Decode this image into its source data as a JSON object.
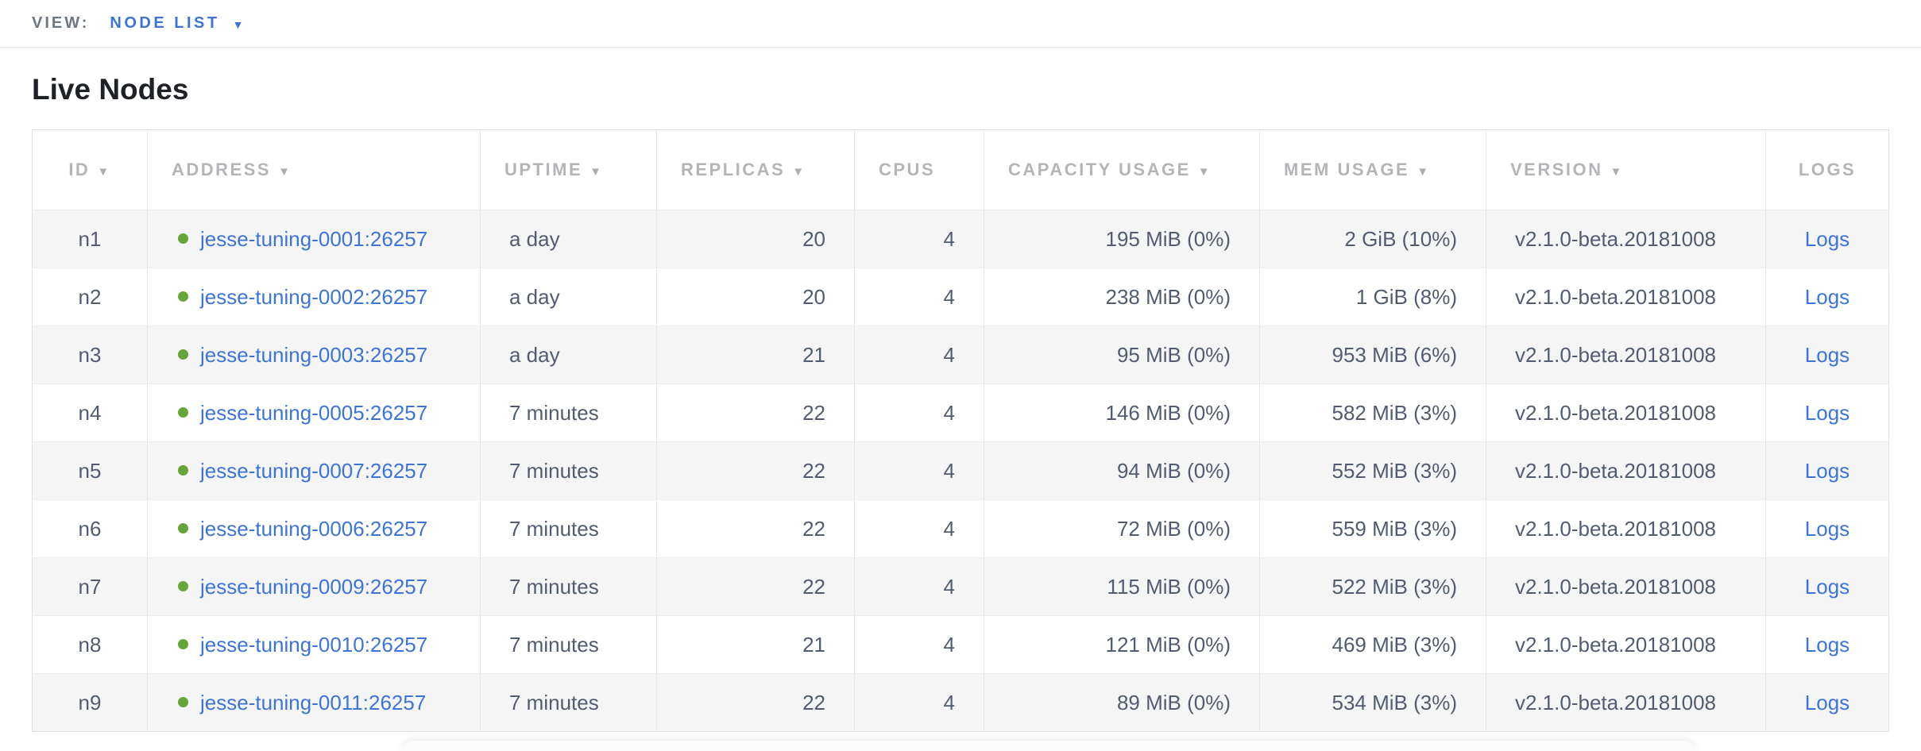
{
  "view_bar": {
    "label": "VIEW:",
    "selected_view": "NODE LIST"
  },
  "icons": {
    "dropdown_caret": "▼",
    "sort_caret": "▼"
  },
  "page": {
    "title": "Live Nodes"
  },
  "table": {
    "columns": [
      {
        "key": "id",
        "label": "ID",
        "sortable": true
      },
      {
        "key": "address",
        "label": "ADDRESS",
        "sortable": true
      },
      {
        "key": "uptime",
        "label": "UPTIME",
        "sortable": true
      },
      {
        "key": "replicas",
        "label": "REPLICAS",
        "sortable": true
      },
      {
        "key": "cpus",
        "label": "CPUS",
        "sortable": false
      },
      {
        "key": "capacity",
        "label": "CAPACITY USAGE",
        "sortable": true
      },
      {
        "key": "mem",
        "label": "MEM USAGE",
        "sortable": true
      },
      {
        "key": "version",
        "label": "VERSION",
        "sortable": true
      },
      {
        "key": "logs",
        "label": "LOGS",
        "sortable": false
      }
    ],
    "rows": [
      {
        "id": "n1",
        "status": "live",
        "address": "jesse-tuning-0001:26257",
        "uptime": "a day",
        "replicas": "20",
        "cpus": "4",
        "capacity": "195 MiB (0%)",
        "mem": "2 GiB (10%)",
        "version": "v2.1.0-beta.20181008",
        "logs": "Logs"
      },
      {
        "id": "n2",
        "status": "live",
        "address": "jesse-tuning-0002:26257",
        "uptime": "a day",
        "replicas": "20",
        "cpus": "4",
        "capacity": "238 MiB (0%)",
        "mem": "1 GiB (8%)",
        "version": "v2.1.0-beta.20181008",
        "logs": "Logs"
      },
      {
        "id": "n3",
        "status": "live",
        "address": "jesse-tuning-0003:26257",
        "uptime": "a day",
        "replicas": "21",
        "cpus": "4",
        "capacity": "95 MiB (0%)",
        "mem": "953 MiB (6%)",
        "version": "v2.1.0-beta.20181008",
        "logs": "Logs"
      },
      {
        "id": "n4",
        "status": "live",
        "address": "jesse-tuning-0005:26257",
        "uptime": "7 minutes",
        "replicas": "22",
        "cpus": "4",
        "capacity": "146 MiB (0%)",
        "mem": "582 MiB (3%)",
        "version": "v2.1.0-beta.20181008",
        "logs": "Logs"
      },
      {
        "id": "n5",
        "status": "live",
        "address": "jesse-tuning-0007:26257",
        "uptime": "7 minutes",
        "replicas": "22",
        "cpus": "4",
        "capacity": "94 MiB (0%)",
        "mem": "552 MiB (3%)",
        "version": "v2.1.0-beta.20181008",
        "logs": "Logs"
      },
      {
        "id": "n6",
        "status": "live",
        "address": "jesse-tuning-0006:26257",
        "uptime": "7 minutes",
        "replicas": "22",
        "cpus": "4",
        "capacity": "72 MiB (0%)",
        "mem": "559 MiB (3%)",
        "version": "v2.1.0-beta.20181008",
        "logs": "Logs"
      },
      {
        "id": "n7",
        "status": "live",
        "address": "jesse-tuning-0009:26257",
        "uptime": "7 minutes",
        "replicas": "22",
        "cpus": "4",
        "capacity": "115 MiB (0%)",
        "mem": "522 MiB (3%)",
        "version": "v2.1.0-beta.20181008",
        "logs": "Logs"
      },
      {
        "id": "n8",
        "status": "live",
        "address": "jesse-tuning-0010:26257",
        "uptime": "7 minutes",
        "replicas": "21",
        "cpus": "4",
        "capacity": "121 MiB (0%)",
        "mem": "469 MiB (3%)",
        "version": "v2.1.0-beta.20181008",
        "logs": "Logs"
      },
      {
        "id": "n9",
        "status": "live",
        "address": "jesse-tuning-0011:26257",
        "uptime": "7 minutes",
        "replicas": "22",
        "cpus": "4",
        "capacity": "89 MiB (0%)",
        "mem": "534 MiB (3%)",
        "version": "v2.1.0-beta.20181008",
        "logs": "Logs"
      }
    ]
  },
  "colors": {
    "accent_blue": "#3d74d8",
    "live_green": "#67a53b",
    "row_stripe": "#f5f5f5",
    "header_text": "#b4b5b9",
    "cell_text": "#525c70"
  }
}
